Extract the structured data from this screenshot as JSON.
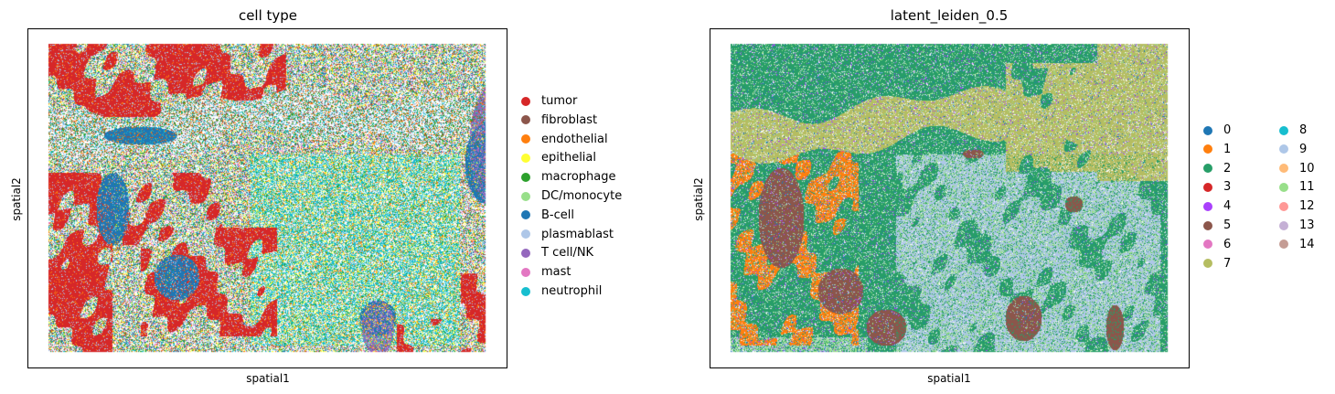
{
  "chart_data": [
    {
      "type": "scatter",
      "title": "cell type",
      "xlabel": "spatial1",
      "ylabel": "spatial2",
      "legend_placement": "right",
      "series": [
        {
          "name": "tumor",
          "color": "#d62728"
        },
        {
          "name": "fibroblast",
          "color": "#8c564b"
        },
        {
          "name": "endothelial",
          "color": "#ff7f0e"
        },
        {
          "name": "epithelial",
          "color": "#ffff33"
        },
        {
          "name": "macrophage",
          "color": "#2ca02c"
        },
        {
          "name": "DC/monocyte",
          "color": "#98df8a"
        },
        {
          "name": "B-cell",
          "color": "#1f77b4"
        },
        {
          "name": "plasmablast",
          "color": "#aec7e8"
        },
        {
          "name": "T cell/NK",
          "color": "#9467bd"
        },
        {
          "name": "mast",
          "color": "#e377c2"
        },
        {
          "name": "neutrophil",
          "color": "#17becf"
        }
      ]
    },
    {
      "type": "scatter",
      "title": "latent_leiden_0.5",
      "xlabel": "spatial1",
      "ylabel": "spatial2",
      "legend_placement": "right",
      "legend_columns": 2,
      "series": [
        {
          "name": "0",
          "color": "#1f77b4"
        },
        {
          "name": "1",
          "color": "#ff7f0e"
        },
        {
          "name": "2",
          "color": "#279e68"
        },
        {
          "name": "3",
          "color": "#d62728"
        },
        {
          "name": "4",
          "color": "#aa40fc"
        },
        {
          "name": "5",
          "color": "#8c564b"
        },
        {
          "name": "6",
          "color": "#e377c2"
        },
        {
          "name": "7",
          "color": "#b5bd61"
        },
        {
          "name": "8",
          "color": "#17becf"
        },
        {
          "name": "9",
          "color": "#aec7e8"
        },
        {
          "name": "10",
          "color": "#ffbb78"
        },
        {
          "name": "11",
          "color": "#98df8a"
        },
        {
          "name": "12",
          "color": "#ff9896"
        },
        {
          "name": "13",
          "color": "#c5b0d5"
        },
        {
          "name": "14",
          "color": "#c49c94"
        }
      ]
    }
  ]
}
